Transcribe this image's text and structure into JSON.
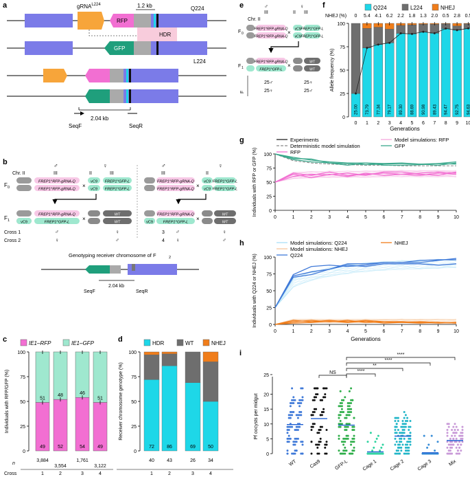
{
  "colors": {
    "cyan": "#1ed7e8",
    "gray": "#8c8c8c",
    "darkgray": "#6e6e6e",
    "orange": "#f07d1a",
    "pink": "#f26fd2",
    "lightpink": "#f7c8e6",
    "mint": "#9fe8cf",
    "green": "#1f9f7c",
    "blue": "#7b7be8",
    "gene_orange": "#f7a53a",
    "hdr_pink": "#f7c3d6",
    "lightblue": "#a9dff7",
    "medblue": "#3f79d8",
    "teal": "#3aa88c"
  },
  "panel_labels": {
    "a": "a",
    "b": "b",
    "c": "c",
    "d": "d",
    "e": "e",
    "f": "f",
    "g": "g",
    "h": "h",
    "i": "i"
  },
  "panel_a": {
    "gRNA": "gRNA",
    "gRNA_sup": "L224",
    "RFP": "RFP",
    "GFP": "GFP",
    "HDR": "HDR",
    "Q224": "Q224",
    "L224": "L224",
    "len1": "1.2 kb",
    "len2": "2.04 kb",
    "SeqF": "SeqF",
    "SeqR": "SeqR"
  },
  "panel_b": {
    "chr2": "Chr. II",
    "chr3": "III",
    "II": "II",
    "male": "♂",
    "female": "♀",
    "F0": "F",
    "F0_sub": "0",
    "F1": "F",
    "F1_sub": "1",
    "frep": "FREP1",
    "sup_rfp": "RFP-gRNA-Q",
    "sup_gfp": "GFP-L",
    "vC9": "vC9",
    "WT": "WT",
    "x": "×",
    "crosses": [
      {
        "label": "Cross 1",
        "n1": "1",
        "s1": "♂",
        "s2": "♀"
      },
      {
        "label": "Cross 2",
        "n1": "2",
        "s1": "♀",
        "s2": "♂"
      },
      {
        "label": "",
        "n1": "3",
        "s1": "♂",
        "s2": "♀"
      },
      {
        "label": "",
        "n1": "4",
        "s1": "♀",
        "s2": "♂"
      }
    ],
    "genotyping_title": "Genotyping receiver chromosome of F",
    "genotyping_sub": "2",
    "len": "2.04 kb",
    "SeqF": "SeqF",
    "SeqR": "SeqR"
  },
  "chart_data": [
    {
      "id": "c",
      "type": "bar",
      "stacked": true,
      "legend": [
        "IE1–RFP",
        "IE1–GFP"
      ],
      "categories": [
        "1",
        "2",
        "3",
        "4"
      ],
      "series": [
        {
          "name": "IE1–RFP",
          "values": [
            49,
            52,
            54,
            49
          ]
        },
        {
          "name": "IE1–GFP",
          "values": [
            51,
            48,
            46,
            51
          ]
        }
      ],
      "ylabel": "Individuals with RFP/GFP (%)",
      "ylim": [
        0,
        100
      ],
      "yticks": [
        0,
        25,
        50,
        75,
        100
      ],
      "n_label": "n",
      "n_values": [
        "3,884",
        "3,554",
        "1,761",
        "3,122"
      ],
      "xlabel": "Cross"
    },
    {
      "id": "d",
      "type": "bar",
      "stacked": true,
      "legend": [
        "HDR",
        "WT",
        "NHEJ"
      ],
      "categories": [
        "1",
        "2",
        "3",
        "4"
      ],
      "series": [
        {
          "name": "HDR",
          "values": [
            72,
            86,
            69,
            50
          ]
        },
        {
          "name": "WT",
          "values": [
            25,
            12,
            31,
            40
          ]
        },
        {
          "name": "NHEJ",
          "values": [
            3,
            2,
            0,
            10
          ]
        }
      ],
      "ylabel": "Receiver chromosome genotype (%)",
      "ylim": [
        0,
        100
      ],
      "yticks": [
        0,
        25,
        50,
        75,
        100
      ],
      "n_values": [
        "40",
        "43",
        "26",
        "34"
      ],
      "xlabel": "Cross"
    },
    {
      "id": "f",
      "type": "bar",
      "stacked": true,
      "legend": [
        "Q224",
        "L224",
        "NHEJ"
      ],
      "categories": [
        "0",
        "1",
        "2",
        "3",
        "4",
        "5",
        "6",
        "7",
        "8",
        "9",
        "10"
      ],
      "series": [
        {
          "name": "Q224",
          "values": [
            25,
            73.79,
            77.34,
            79.17,
            89.3,
            88.69,
            90.98,
            89.43,
            94.47,
            92.75,
            94.63
          ]
        },
        {
          "name": "L224",
          "values": [
            75,
            20.8,
            18.56,
            14.63,
            8.5,
            9.71,
            8.02,
            9.57,
            5.03,
            4.45,
            4.87
          ]
        },
        {
          "name": "NHEJ",
          "values": [
            0,
            5.4,
            4.1,
            6.2,
            2.2,
            1.8,
            1.3,
            2.0,
            0.5,
            2.8,
            0.5
          ]
        }
      ],
      "labels": [
        "25.00",
        "73.79",
        "77.34",
        "79.17",
        "89.30",
        "88.69",
        "90.98",
        "89.43",
        "94.47",
        "92.75",
        "94.63"
      ],
      "nhej_labels": [
        "0",
        "5.4",
        "4.1",
        "6.2",
        "2.2",
        "1.8",
        "1.3",
        "2.0",
        "0.5",
        "2.8",
        "0.5"
      ],
      "nhej_title": "NHEJ (%)",
      "ylabel": "Allele frequency (%)",
      "xlabel": "Generations",
      "ylim": [
        0,
        100
      ],
      "yticks": [
        0,
        25,
        50,
        75,
        100
      ]
    },
    {
      "id": "g",
      "type": "line",
      "legend": [
        "Experiments",
        "Deterministic model simulation",
        "RFP",
        "Model simulations: RFP",
        "GFP"
      ],
      "x": [
        0,
        1,
        2,
        3,
        4,
        5,
        6,
        7,
        8,
        9,
        10
      ],
      "series": [
        {
          "name": "GFP",
          "values": [
            100,
            90,
            86,
            84,
            83,
            81,
            82,
            83,
            82,
            80,
            84
          ]
        },
        {
          "name": "GFP",
          "values": [
            100,
            94,
            89,
            86,
            84,
            84,
            83,
            84,
            82,
            83,
            86
          ]
        },
        {
          "name": "GFP",
          "values": [
            100,
            92,
            91,
            84,
            80,
            84,
            80,
            80,
            81,
            83,
            82
          ]
        },
        {
          "name": "RFP",
          "values": [
            50,
            66,
            62,
            68,
            62,
            64,
            66,
            64,
            66,
            68,
            66
          ]
        },
        {
          "name": "RFP",
          "values": [
            50,
            60,
            64,
            63,
            66,
            62,
            68,
            68,
            64,
            62,
            68
          ]
        },
        {
          "name": "RFP",
          "values": [
            50,
            64,
            58,
            64,
            60,
            66,
            62,
            64,
            62,
            66,
            64
          ]
        }
      ],
      "deterministic": [
        100,
        88,
        84,
        82,
        81,
        80,
        80,
        79,
        79,
        79,
        79
      ],
      "ylabel": "Individuals with RFP or GFP (%)",
      "ylim": [
        0,
        100
      ],
      "yticks": [
        0,
        25,
        50,
        75,
        100
      ],
      "xticks": [
        "0",
        "1",
        "2",
        "3",
        "4",
        "5",
        "6",
        "7",
        "8",
        "9",
        "10"
      ]
    },
    {
      "id": "h",
      "type": "line",
      "legend": [
        "Model simulations: Q224",
        "Model simulations: NHEJ",
        "Q224",
        "NHEJ"
      ],
      "x": [
        0,
        1,
        2,
        3,
        4,
        5,
        6,
        7,
        8,
        9,
        10
      ],
      "series": [
        {
          "name": "Q224",
          "values": [
            25,
            74,
            86,
            88,
            86,
            88,
            92,
            92,
            92,
            95,
            98
          ]
        },
        {
          "name": "Q224",
          "values": [
            25,
            70,
            74,
            82,
            90,
            90,
            92,
            92,
            95,
            96,
            96
          ]
        },
        {
          "name": "Q224",
          "values": [
            25,
            72,
            78,
            82,
            88,
            86,
            90,
            90,
            90,
            88,
            90
          ]
        },
        {
          "name": "NHEJ",
          "values": [
            0,
            6,
            4,
            6,
            4,
            6,
            4,
            3,
            2,
            3,
            2
          ]
        },
        {
          "name": "NHEJ",
          "values": [
            0,
            4,
            6,
            4,
            6,
            3,
            4,
            4,
            3,
            2,
            3
          ]
        },
        {
          "name": "NHEJ",
          "values": [
            0,
            2,
            3,
            5,
            3,
            5,
            2,
            3,
            4,
            3,
            2
          ]
        }
      ],
      "ylabel": "Individuals with Q224 or NHEJ (%)",
      "xlabel": "Generations",
      "ylim": [
        0,
        100
      ],
      "yticks": [
        0,
        25,
        50,
        75,
        100
      ],
      "xticks": [
        "0",
        "1",
        "2",
        "3",
        "4",
        "5",
        "6",
        "7",
        "8",
        "9",
        "10"
      ]
    },
    {
      "id": "i",
      "type": "scatter",
      "categories": [
        "WT",
        "Cas9",
        "GFP-L",
        "Cage 1",
        "Cage 2",
        "Cage 3",
        "Mix"
      ],
      "means": [
        9.8,
        11.8,
        9.6,
        0.6,
        5.9,
        0.3,
        4.4
      ],
      "ylabel": "Pf oocysts per midgut",
      "ylim": [
        0,
        25
      ],
      "yticks": [
        0,
        5,
        10,
        15,
        20
      ],
      "ytick_top": "25",
      "significance": [
        {
          "from": "Cas9",
          "to": "GFP-L",
          "label": "NS"
        },
        {
          "from": "GFP-L",
          "to": "Cage 1",
          "label": "****"
        },
        {
          "from": "GFP-L",
          "to": "Cage 2",
          "label": "**"
        },
        {
          "from": "GFP-L",
          "to": "Cage 3",
          "label": "****"
        },
        {
          "from": "GFP-L",
          "to": "Mix",
          "label": "****"
        }
      ]
    }
  ]
}
